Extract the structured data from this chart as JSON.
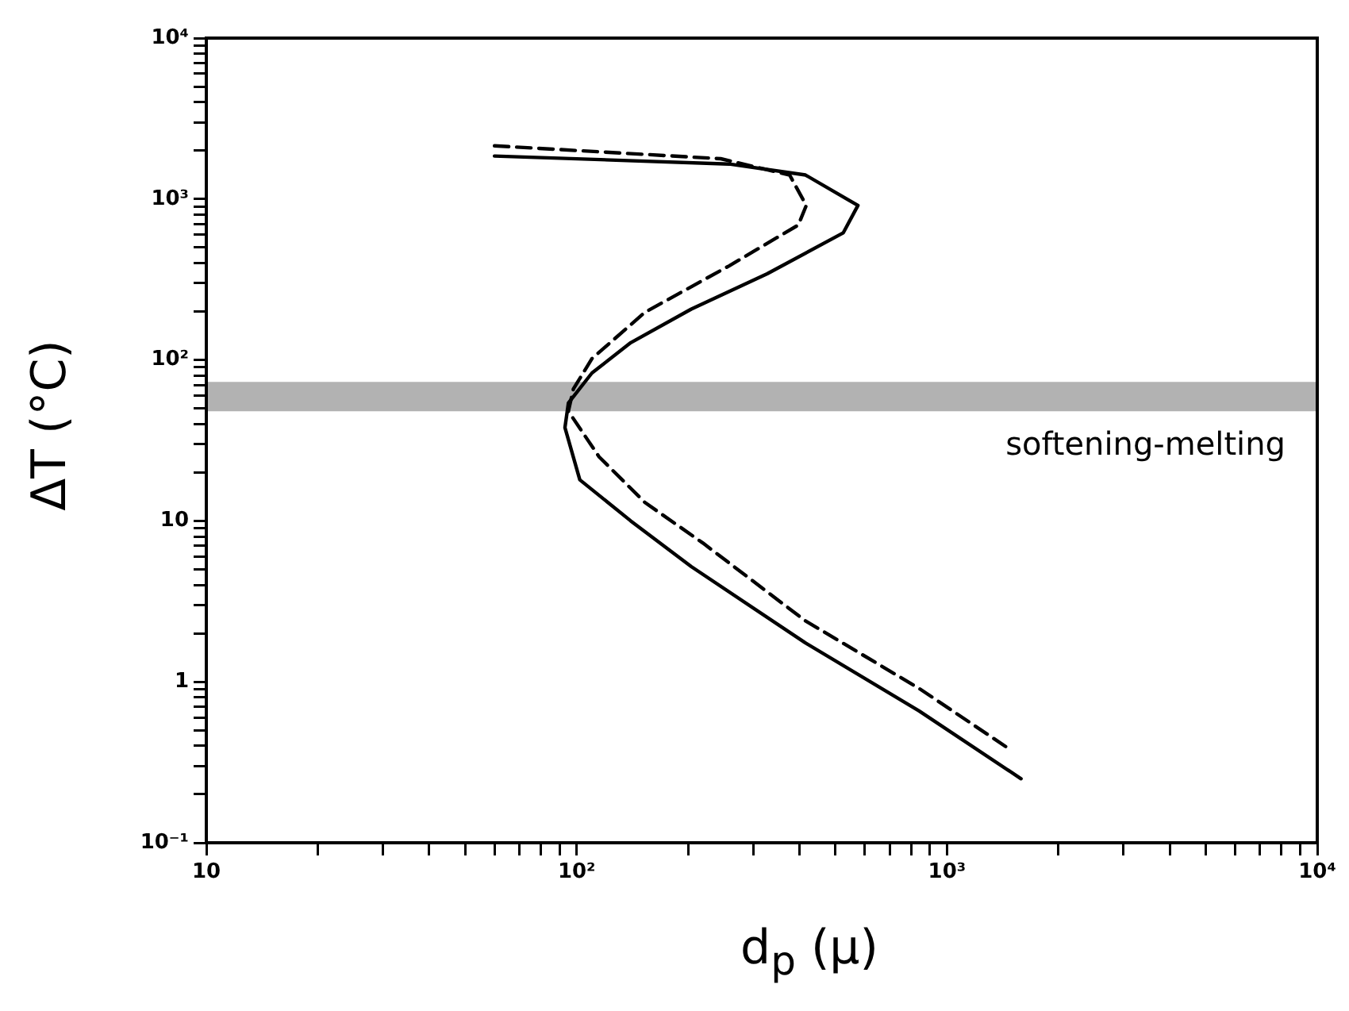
{
  "chart_data": {
    "type": "line",
    "xlabel": "d$_{p}$ (μ)",
    "ylabel": "ΔT (°C)",
    "log": "xy",
    "grid": false,
    "legend": false,
    "marker": "none",
    "xlim": [
      10,
      10000
    ],
    "ylim": [
      0.1,
      10000
    ],
    "xticks": [
      {
        "value": 10,
        "label": "10"
      },
      {
        "value": 20,
        "label": null
      },
      {
        "value": 30,
        "label": null
      },
      {
        "value": 40,
        "label": null
      },
      {
        "value": 50,
        "label": null
      },
      {
        "value": 60,
        "label": null
      },
      {
        "value": 70,
        "label": null
      },
      {
        "value": 80,
        "label": null
      },
      {
        "value": 90,
        "label": null
      },
      {
        "value": 100,
        "label": "10²"
      },
      {
        "value": 200,
        "label": null
      },
      {
        "value": 300,
        "label": null
      },
      {
        "value": 400,
        "label": null
      },
      {
        "value": 500,
        "label": null
      },
      {
        "value": 600,
        "label": null
      },
      {
        "value": 700,
        "label": null
      },
      {
        "value": 800,
        "label": null
      },
      {
        "value": 900,
        "label": null
      },
      {
        "value": 1000,
        "label": "10³"
      },
      {
        "value": 2000,
        "label": null
      },
      {
        "value": 3000,
        "label": null
      },
      {
        "value": 4000,
        "label": null
      },
      {
        "value": 5000,
        "label": null
      },
      {
        "value": 6000,
        "label": null
      },
      {
        "value": 7000,
        "label": null
      },
      {
        "value": 8000,
        "label": null
      },
      {
        "value": 9000,
        "label": null
      },
      {
        "value": 10000,
        "label": "10⁴"
      }
    ],
    "yticks": [
      {
        "value": 0.1,
        "label": "10⁻¹"
      },
      {
        "value": 0.2,
        "label": null
      },
      {
        "value": 0.3,
        "label": null
      },
      {
        "value": 0.4,
        "label": null
      },
      {
        "value": 0.5,
        "label": null
      },
      {
        "value": 0.6,
        "label": null
      },
      {
        "value": 0.7,
        "label": null
      },
      {
        "value": 0.8,
        "label": null
      },
      {
        "value": 0.9,
        "label": null
      },
      {
        "value": 1,
        "label": "1"
      },
      {
        "value": 2,
        "label": null
      },
      {
        "value": 3,
        "label": null
      },
      {
        "value": 4,
        "label": null
      },
      {
        "value": 5,
        "label": null
      },
      {
        "value": 6,
        "label": null
      },
      {
        "value": 7,
        "label": null
      },
      {
        "value": 8,
        "label": null
      },
      {
        "value": 9,
        "label": null
      },
      {
        "value": 10,
        "label": "10"
      },
      {
        "value": 20,
        "label": null
      },
      {
        "value": 30,
        "label": null
      },
      {
        "value": 40,
        "label": null
      },
      {
        "value": 50,
        "label": null
      },
      {
        "value": 60,
        "label": null
      },
      {
        "value": 70,
        "label": null
      },
      {
        "value": 80,
        "label": null
      },
      {
        "value": 90,
        "label": null
      },
      {
        "value": 100,
        "label": "10²"
      },
      {
        "value": 200,
        "label": null
      },
      {
        "value": 300,
        "label": null
      },
      {
        "value": 400,
        "label": null
      },
      {
        "value": 500,
        "label": null
      },
      {
        "value": 600,
        "label": null
      },
      {
        "value": 700,
        "label": null
      },
      {
        "value": 800,
        "label": null
      },
      {
        "value": 900,
        "label": null
      },
      {
        "value": 1000,
        "label": "10³"
      },
      {
        "value": 2000,
        "label": null
      },
      {
        "value": 3000,
        "label": null
      },
      {
        "value": 4000,
        "label": null
      },
      {
        "value": 5000,
        "label": null
      },
      {
        "value": 6000,
        "label": null
      },
      {
        "value": 7000,
        "label": null
      },
      {
        "value": 8000,
        "label": null
      },
      {
        "value": 9000,
        "label": null
      },
      {
        "value": 10000,
        "label": "10⁴"
      }
    ],
    "bands": [
      {
        "axis": "y",
        "from": 48,
        "to": 73,
        "label": "softening-melting",
        "color": "#000000"
      }
    ],
    "series": [
      {
        "type": "line",
        "color": "#000000",
        "line_style": "solid",
        "x": [
          60,
          258,
          415,
          575,
          525,
          327,
          204,
          140,
          110,
          95,
          93,
          102,
          140,
          204,
          414,
          841,
          1585
        ],
        "values": [
          1850,
          1650,
          1410,
          912,
          617,
          343,
          207,
          128,
          83,
          54,
          38,
          18,
          10,
          5.2,
          1.75,
          0.66,
          0.25
        ]
      },
      {
        "type": "line",
        "color": "#000000",
        "line_style": "dashed",
        "x": [
          60,
          245,
          376,
          417,
          397,
          258,
          153,
          110,
          98,
          95,
          115,
          153,
          219,
          414,
          841,
          1480
        ],
        "values": [
          2140,
          1780,
          1410,
          912,
          690,
          384,
          198,
          102,
          66,
          48,
          25,
          13,
          7.3,
          2.4,
          0.91,
          0.38
        ]
      }
    ]
  }
}
